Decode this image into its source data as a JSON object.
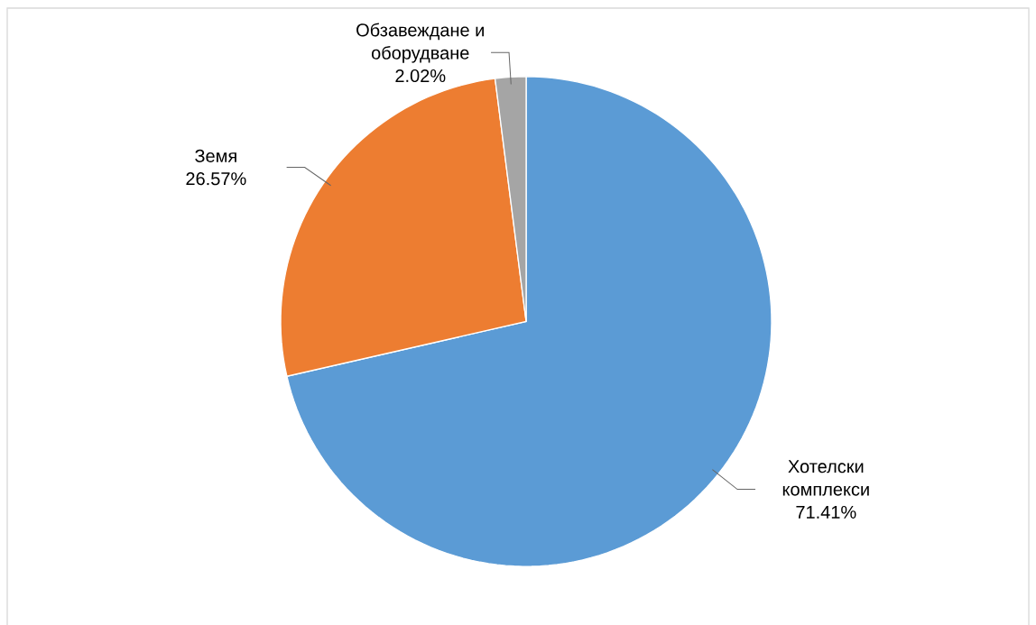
{
  "chart_data": {
    "type": "pie",
    "categories": [
      "Хотелски комплекси",
      "Земя",
      "Обзавеждане и оборудване"
    ],
    "values": [
      71.41,
      26.57,
      2.02
    ],
    "colors": [
      "#5b9bd5",
      "#ed7d31",
      "#a5a5a5"
    ],
    "value_labels": [
      "71.41%",
      "26.57%",
      "2.02%"
    ]
  }
}
